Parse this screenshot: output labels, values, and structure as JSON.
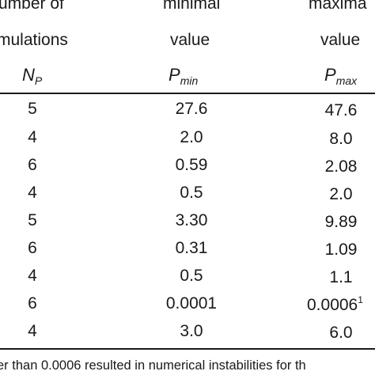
{
  "header": {
    "col1_line1": "umber of",
    "col1_line2": "mulations",
    "col1_symbol": "N",
    "col1_symbol_sub": "P",
    "col2_line1": "minimal",
    "col2_line2": "value",
    "col2_symbol": "P",
    "col2_symbol_sub": "min",
    "col3_line1": "maxima",
    "col3_line2": "value",
    "col3_symbol": "P",
    "col3_symbol_sub": "max"
  },
  "rows": [
    {
      "n": "5",
      "min": "27.6",
      "max": "47.6",
      "max_mark": ""
    },
    {
      "n": "4",
      "min": "2.0",
      "max": "8.0",
      "max_mark": ""
    },
    {
      "n": "6",
      "min": "0.59",
      "max": "2.08",
      "max_mark": ""
    },
    {
      "n": "4",
      "min": "0.5",
      "max": "2.0",
      "max_mark": ""
    },
    {
      "n": "5",
      "min": "3.30",
      "max": "9.89",
      "max_mark": ""
    },
    {
      "n": "6",
      "min": "0.31",
      "max": "1.09",
      "max_mark": ""
    },
    {
      "n": "4",
      "min": "0.5",
      "max": "1.1",
      "max_mark": ""
    },
    {
      "n": "6",
      "min": "0.0001",
      "max": "0.0006",
      "max_mark": "1"
    },
    {
      "n": "4",
      "min": "3.0",
      "max": "6.0",
      "max_mark": ""
    }
  ],
  "footnote": "er than 0.0006 resulted in numerical instabilities for th"
}
